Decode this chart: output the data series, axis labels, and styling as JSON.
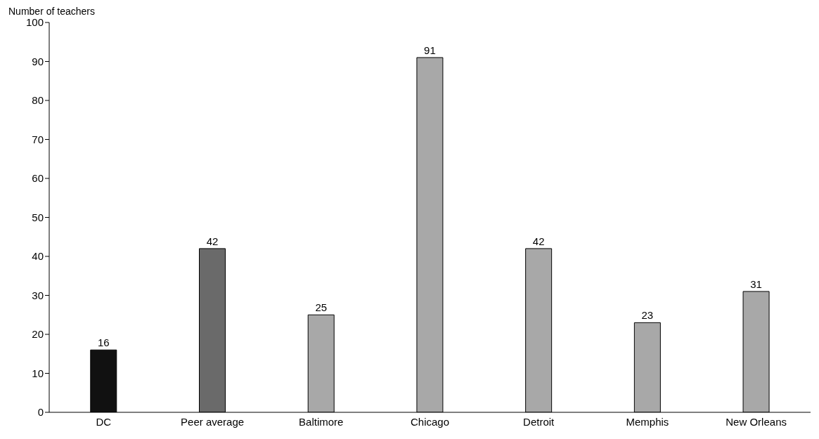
{
  "chart_data": {
    "type": "bar",
    "ylabel": "Number of teachers",
    "categories": [
      "DC",
      "Peer average",
      "Baltimore",
      "Chicago",
      "Detroit",
      "Memphis",
      "New Orleans"
    ],
    "values": [
      16,
      42,
      25,
      91,
      42,
      23,
      31
    ],
    "colors": [
      "#111111",
      "#6a6a6a",
      "#a8a8a8",
      "#a8a8a8",
      "#a8a8a8",
      "#a8a8a8",
      "#a8a8a8"
    ],
    "ylim": [
      0,
      100
    ],
    "yticks": [
      0,
      10,
      20,
      30,
      40,
      50,
      60,
      70,
      80,
      90,
      100
    ],
    "grid": false,
    "data_labels": true
  }
}
